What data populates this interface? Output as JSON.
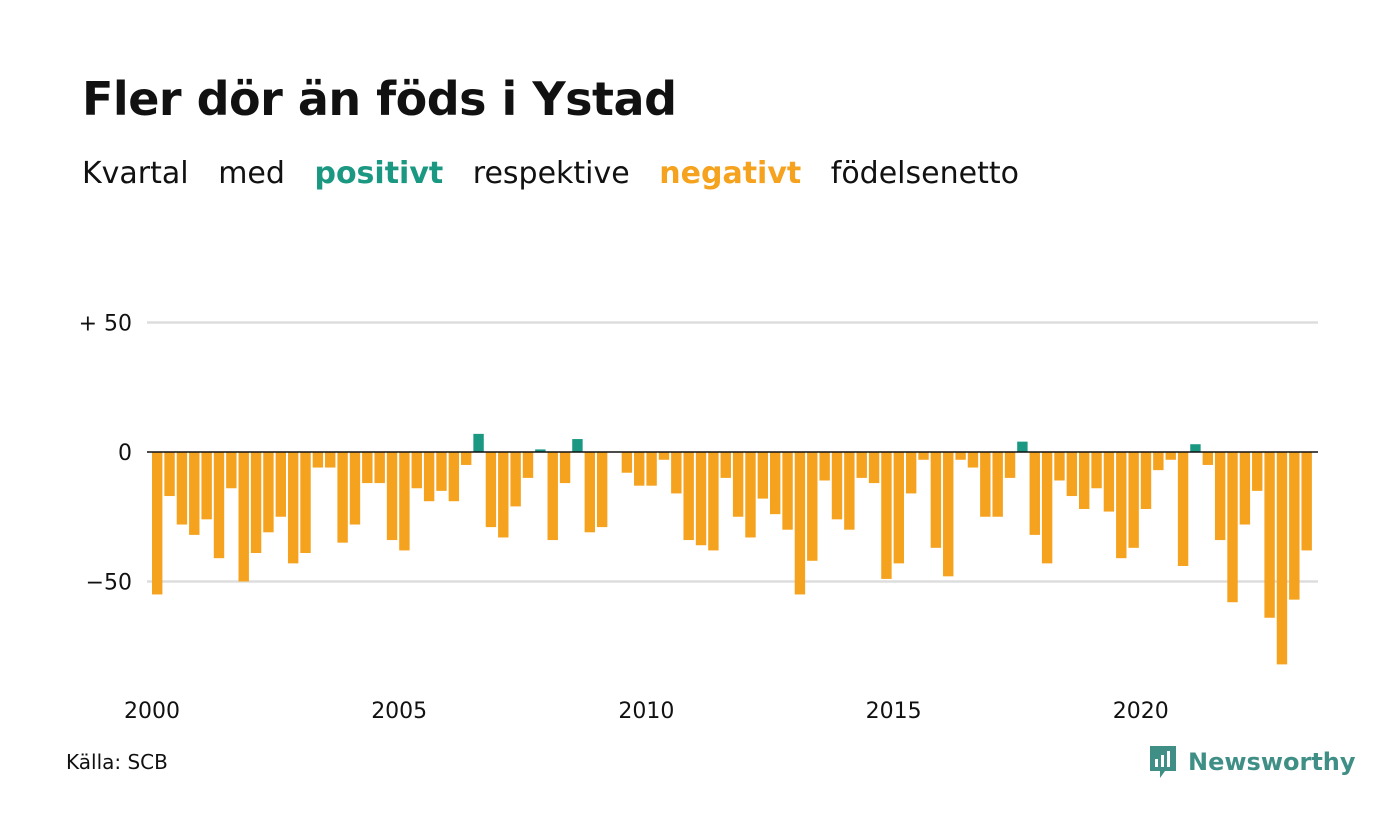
{
  "title": "Fler dör än föds i Ystad",
  "subtitle": {
    "part1": "Kvartal",
    "part2": "med",
    "positive_word": "positivt",
    "part3": "respektive",
    "negative_word": "negativt",
    "part4": "födelsenetto"
  },
  "source": "Källa: SCB",
  "brand": "Newsworthy",
  "colors": {
    "positive": "#1a9882",
    "negative": "#f5a21e",
    "grid": "#dddddd",
    "brand": "#3f8f86"
  },
  "chart_data": {
    "type": "bar",
    "x_start": 2000,
    "x_end": 2023.75,
    "interval": "quarter",
    "xticks": [
      "2000",
      "2005",
      "2010",
      "2015",
      "2020"
    ],
    "yticks": [
      {
        "value": 50,
        "label": "+ 50"
      },
      {
        "value": 0,
        "label": "0"
      },
      {
        "value": -50,
        "label": "−50"
      }
    ],
    "ylim": [
      -82,
      50
    ],
    "grid": true,
    "values": [
      -55,
      -17,
      -28,
      -32,
      -26,
      -41,
      -14,
      -50,
      -39,
      -31,
      -25,
      -43,
      -39,
      -6,
      -6,
      -35,
      -28,
      -12,
      -12,
      -34,
      -38,
      -14,
      -19,
      -15,
      -19,
      -5,
      7,
      -29,
      -33,
      -21,
      -10,
      1,
      -34,
      -12,
      5,
      -31,
      -29,
      0,
      -8,
      -13,
      -13,
      -3,
      -16,
      -34,
      -36,
      -38,
      -10,
      -25,
      -33,
      -18,
      -24,
      -30,
      -55,
      -42,
      -11,
      -26,
      -30,
      -10,
      -12,
      -49,
      -43,
      -16,
      -3,
      -37,
      -48,
      -3,
      -6,
      -25,
      -25,
      -10,
      4,
      -32,
      -43,
      -11,
      -17,
      -22,
      -14,
      -23,
      -41,
      -37,
      -22,
      -7,
      -3,
      -44,
      3,
      -5,
      -34,
      -58,
      -28,
      -15,
      -64,
      -82,
      -57,
      -38
    ]
  }
}
